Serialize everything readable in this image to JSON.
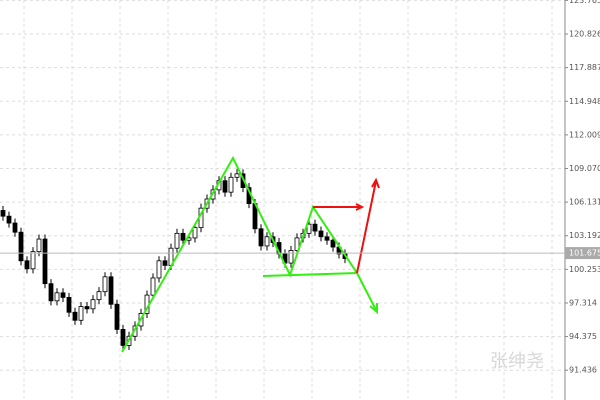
{
  "chart_data": {
    "type": "candlestick",
    "open": [
      105.4,
      104.9,
      104.3,
      103.5,
      101.0,
      100.3,
      101.8,
      102.9,
      99.0,
      97.5,
      98.2,
      97.8,
      96.5,
      95.8,
      97.0,
      96.8,
      97.6,
      98.3,
      99.6,
      97.2,
      95.0,
      93.6,
      94.4,
      95.3,
      96.4,
      98.0,
      99.5,
      101.0,
      100.6,
      102.1,
      103.4,
      102.8,
      103.0,
      103.9,
      105.6,
      106.4,
      107.2,
      108.0,
      107.0,
      108.3,
      108.6,
      107.4,
      106.0,
      103.8,
      102.3,
      103.1,
      102.6,
      101.6,
      100.8,
      101.9,
      103.0,
      103.4,
      104.2,
      103.6,
      103.1,
      102.8,
      102.2,
      101.6
    ],
    "high": [
      105.8,
      105.3,
      104.7,
      103.9,
      101.4,
      102.2,
      103.3,
      103.3,
      99.4,
      98.6,
      98.6,
      98.2,
      96.9,
      97.4,
      97.4,
      98.0,
      98.7,
      100.0,
      100.0,
      97.6,
      95.4,
      94.8,
      95.7,
      96.8,
      98.4,
      99.9,
      101.4,
      101.4,
      102.5,
      103.8,
      103.8,
      103.4,
      104.3,
      106.0,
      106.8,
      107.6,
      108.4,
      108.4,
      108.7,
      109.0,
      109.0,
      107.8,
      106.4,
      104.2,
      103.5,
      103.5,
      103.0,
      102.0,
      102.3,
      103.4,
      103.8,
      104.6,
      104.6,
      104.0,
      103.5,
      103.2,
      102.6,
      102.0
    ],
    "low": [
      104.5,
      103.9,
      103.1,
      100.6,
      99.9,
      99.9,
      101.4,
      98.6,
      97.1,
      97.1,
      97.4,
      96.1,
      95.4,
      95.4,
      96.4,
      96.4,
      97.2,
      97.9,
      96.8,
      94.6,
      93.2,
      93.2,
      94.0,
      94.9,
      96.0,
      97.6,
      99.1,
      100.2,
      100.2,
      101.7,
      102.4,
      102.4,
      102.6,
      103.5,
      105.2,
      106.0,
      106.8,
      106.6,
      106.6,
      107.9,
      107.0,
      105.6,
      103.4,
      101.9,
      101.9,
      102.2,
      101.2,
      100.4,
      100.4,
      101.5,
      102.6,
      103.0,
      103.2,
      102.7,
      102.4,
      101.8,
      101.2,
      100.8
    ],
    "close": [
      104.9,
      104.3,
      103.5,
      101.0,
      100.3,
      101.8,
      102.9,
      99.0,
      97.5,
      98.2,
      97.8,
      96.5,
      95.8,
      97.0,
      96.8,
      97.6,
      98.3,
      99.6,
      97.2,
      95.0,
      93.6,
      94.4,
      95.3,
      96.4,
      98.0,
      99.5,
      101.0,
      100.6,
      102.1,
      103.4,
      102.8,
      103.0,
      103.9,
      105.6,
      106.4,
      107.2,
      108.0,
      107.0,
      108.3,
      108.6,
      107.4,
      106.0,
      103.8,
      102.3,
      103.1,
      102.6,
      101.6,
      100.8,
      101.9,
      103.0,
      103.4,
      104.2,
      103.6,
      103.1,
      102.8,
      102.2,
      101.6,
      101.2
    ],
    "last_price": 101.675,
    "ylim": [
      88.83,
      123.8
    ],
    "yticks": [
      91.436,
      94.375,
      97.314,
      100.253,
      103.192,
      106.131,
      {
        "value": 109.07,
        "label": "109.070"
      },
      112.009,
      114.948,
      117.887,
      120.826,
      123.765
    ],
    "grid": true,
    "watermark": "张绅尧"
  }
}
